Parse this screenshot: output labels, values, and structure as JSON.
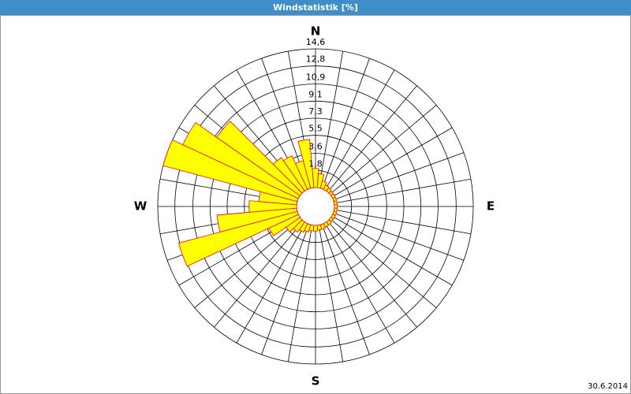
{
  "chart_data": {
    "type": "windrose",
    "title": "Windstatistik [%]",
    "categories": [
      null,
      null,
      null,
      null,
      null,
      null,
      null,
      null,
      null,
      null,
      null,
      null,
      null,
      null,
      null,
      null,
      null,
      null,
      null,
      null,
      null,
      null,
      null,
      null,
      null,
      null,
      null,
      null,
      null,
      null,
      null,
      null,
      null,
      null,
      null,
      null
    ],
    "values": [
      2.0,
      1.5,
      0.8,
      0.5,
      0.4,
      0.3,
      0.3,
      0.3,
      0.3,
      0.3,
      0.3,
      0.3,
      0.3,
      0.3,
      0.4,
      0.4,
      0.5,
      0.5,
      0.6,
      0.6,
      0.8,
      1.0,
      1.3,
      1.8,
      3.4,
      12.9,
      8.4,
      5.0,
      4.0,
      14.6,
      13.4,
      10.7,
      4.3,
      3.9,
      3.0,
      5.1
    ],
    "color": "#ffff00",
    "edge_color": "#ff0000",
    "direction_labels": [
      "N",
      "E",
      "S",
      "W"
    ],
    "ylim": [
      0,
      14.6
    ],
    "yticks": [
      {
        "value": 1.8,
        "label": "1,8"
      },
      {
        "value": 3.6,
        "label": "3,6"
      },
      {
        "value": 5.5,
        "label": "5,5"
      },
      {
        "value": 7.3,
        "label": "7,3"
      },
      {
        "value": 9.1,
        "label": "9,1"
      },
      {
        "value": 10.9,
        "label": "10,9"
      },
      {
        "value": 12.8,
        "label": "12,8"
      },
      {
        "value": 14.6,
        "label": "14,6"
      }
    ],
    "grid": true,
    "footer": "30.6.2014"
  }
}
